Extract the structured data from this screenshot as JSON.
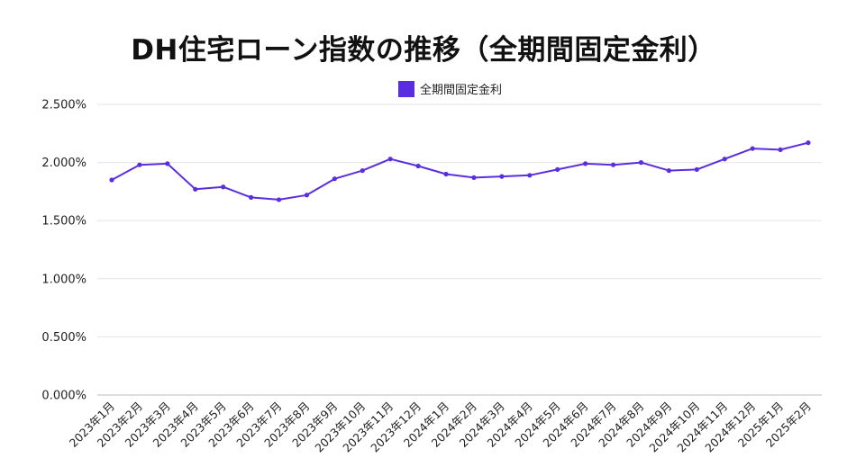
{
  "chart_data": {
    "type": "line",
    "title": "DH住宅ローン指数の推移（全期間固定金利）",
    "legend_position": "top-center",
    "grid": true,
    "color": "#5a2ee0",
    "xlabel": "",
    "ylabel": "",
    "ylim": [
      0,
      2.5
    ],
    "y_ticks": [
      "0.000%",
      "0.500%",
      "1.000%",
      "1.500%",
      "2.000%",
      "2.500%"
    ],
    "categories": [
      "2023年1月",
      "2023年2月",
      "2023年3月",
      "2023年4月",
      "2023年5月",
      "2023年6月",
      "2023年7月",
      "2023年8月",
      "2023年9月",
      "2023年10月",
      "2023年11月",
      "2023年12月",
      "2024年1月",
      "2024年2月",
      "2024年3月",
      "2024年4月",
      "2024年5月",
      "2024年6月",
      "2024年7月",
      "2024年8月",
      "2024年9月",
      "2024年10月",
      "2024年11月",
      "2024年12月",
      "2025年1月",
      "2025年2月"
    ],
    "series": [
      {
        "name": "全期間固定金利",
        "values": [
          1.85,
          1.98,
          1.99,
          1.77,
          1.79,
          1.7,
          1.68,
          1.72,
          1.86,
          1.93,
          2.03,
          1.97,
          1.9,
          1.87,
          1.88,
          1.89,
          1.94,
          1.99,
          1.98,
          2.0,
          1.93,
          1.94,
          2.03,
          2.12,
          2.11,
          2.17
        ]
      }
    ]
  }
}
